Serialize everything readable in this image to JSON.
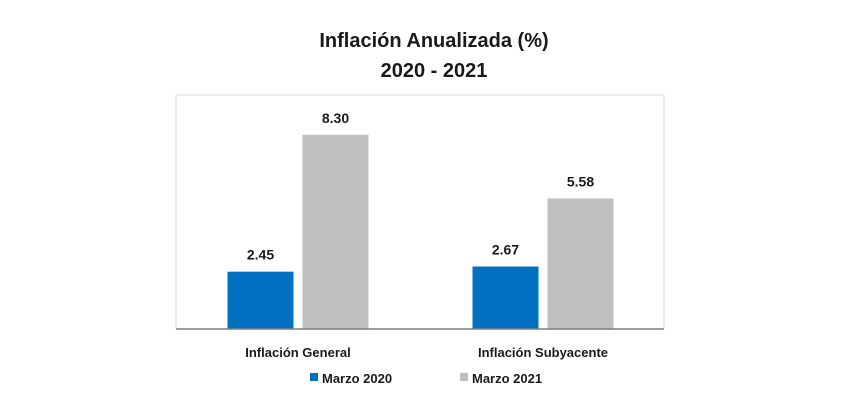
{
  "chart_data": {
    "type": "bar",
    "title": "Inflación Anualizada (%)",
    "subtitle": "2020 - 2021",
    "categories": [
      "Inflación General",
      "Inflación Subyacente"
    ],
    "series": [
      {
        "name": "Marzo 2020",
        "values": [
          2.45,
          2.67
        ],
        "labels": [
          "2.45",
          "2.67"
        ],
        "color": "#0070C0"
      },
      {
        "name": "Marzo 2021",
        "values": [
          8.3,
          5.58
        ],
        "labels": [
          "8.30",
          "5.58"
        ],
        "color": "#BFBFBF"
      }
    ],
    "ylim": [
      0,
      10
    ],
    "grid": false,
    "legend": "bottom"
  }
}
